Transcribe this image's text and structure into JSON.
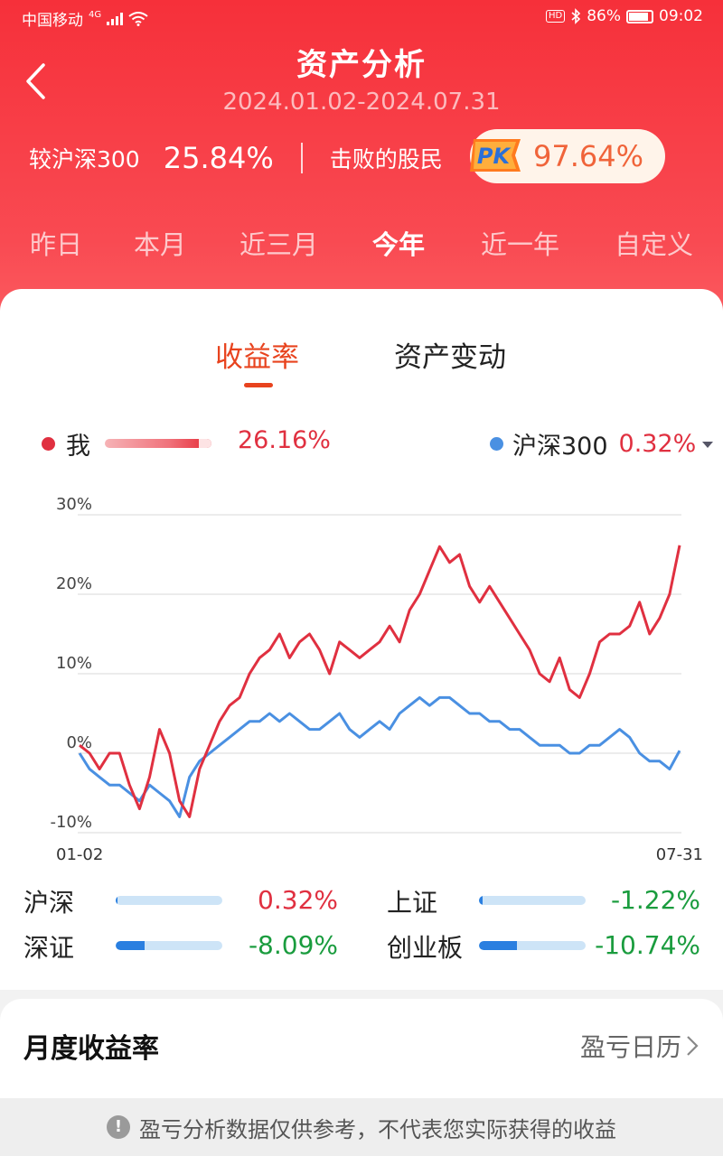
{
  "status_bar": {
    "carrier": "中国移动",
    "network": "4G",
    "battery_percent": "86%",
    "time": "09:02"
  },
  "header": {
    "title": "资产分析",
    "date_range": "2024.01.02-2024.07.31",
    "compare_label": "较沪深300",
    "compare_value": "25.84%",
    "beat_label": "击败的股民",
    "pk_badge": "PK",
    "beat_value": "97.64%"
  },
  "periods": [
    "昨日",
    "本月",
    "近三月",
    "今年",
    "近一年",
    "自定义"
  ],
  "active_period": "今年",
  "tabs": {
    "return_rate": "收益率",
    "asset_change": "资产变动"
  },
  "legend": {
    "me_label": "我",
    "me_value": "26.16%",
    "benchmark_label": "沪深300",
    "benchmark_value": "0.32%"
  },
  "colors": {
    "header_red": "#f6303a",
    "me_line": "#e03040",
    "benchmark_line": "#4a90e2",
    "positive": "#e03040",
    "negative": "#1a9c3e",
    "tab_active": "#e8431e"
  },
  "chart_data": {
    "type": "line",
    "x_start_label": "01-02",
    "x_end_label": "07-31",
    "y_ticks": [
      "30%",
      "20%",
      "10%",
      "0%",
      "-10%"
    ],
    "ylim": [
      -10,
      30
    ],
    "grid": true,
    "series": [
      {
        "name": "我",
        "color": "#e03040",
        "values": [
          1,
          0,
          -2,
          0,
          0,
          -4,
          -7,
          -3,
          3,
          0,
          -6,
          -8,
          -2,
          1,
          4,
          6,
          7,
          10,
          12,
          13,
          15,
          12,
          14,
          15,
          13,
          10,
          14,
          13,
          12,
          13,
          14,
          16,
          14,
          18,
          20,
          23,
          26,
          24,
          25,
          21,
          19,
          21,
          19,
          17,
          15,
          13,
          10,
          9,
          12,
          8,
          7,
          10,
          14,
          15,
          15,
          16,
          19,
          15,
          17,
          20,
          26.16
        ]
      },
      {
        "name": "沪深300",
        "color": "#4a90e2",
        "values": [
          0,
          -2,
          -3,
          -4,
          -4,
          -5,
          -6,
          -4,
          -5,
          -6,
          -8,
          -3,
          -1,
          0,
          1,
          2,
          3,
          4,
          4,
          5,
          4,
          5,
          4,
          3,
          3,
          4,
          5,
          3,
          2,
          3,
          4,
          3,
          5,
          6,
          7,
          6,
          7,
          7,
          6,
          5,
          5,
          4,
          4,
          3,
          3,
          2,
          1,
          1,
          1,
          0,
          0,
          1,
          1,
          2,
          3,
          2,
          0,
          -1,
          -1,
          -2,
          0.32
        ]
      }
    ]
  },
  "indices": [
    {
      "name": "沪深",
      "value": "0.32%",
      "fill": 0.02,
      "sign": "positive"
    },
    {
      "name": "上证",
      "value": "-1.22%",
      "fill": 0.03,
      "sign": "negative"
    },
    {
      "name": "深证",
      "value": "-8.09%",
      "fill": 0.27,
      "sign": "negative"
    },
    {
      "name": "创业板",
      "value": "-10.74%",
      "fill": 0.36,
      "sign": "negative"
    }
  ],
  "monthly": {
    "title": "月度收益率",
    "calendar_link": "盈亏日历"
  },
  "disclaimer": "盈亏分析数据仅供参考，不代表您实际获得的收益"
}
